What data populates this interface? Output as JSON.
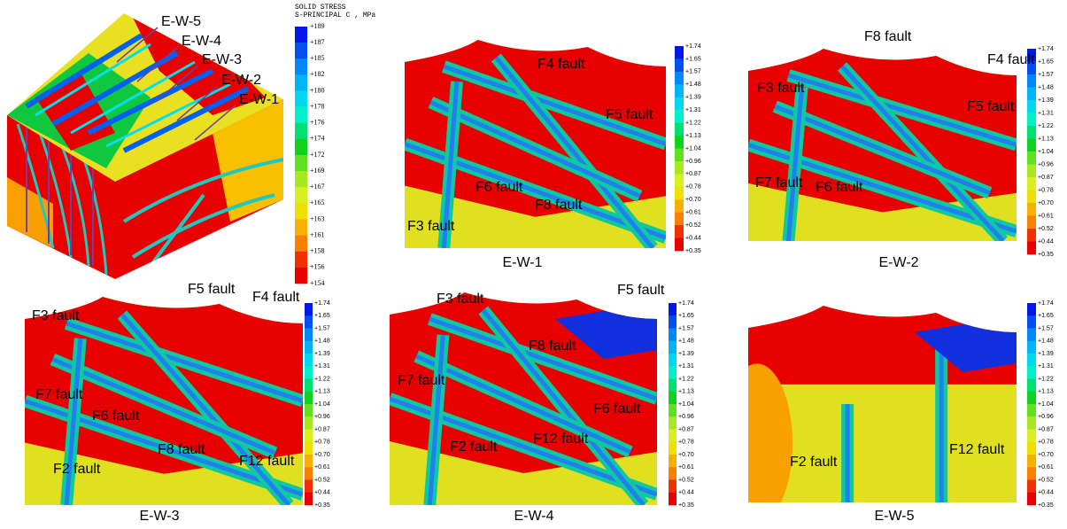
{
  "block": {
    "labels": [
      "E-W-5",
      "E-W-4",
      "E-W-3",
      "E-W-2",
      "E-W-1"
    ]
  },
  "block_colorbar": {
    "title": [
      "SOLID STRESS",
      "S-PRINCIPAL C , MPa"
    ],
    "ticks": [
      "+189",
      "+187",
      "+185",
      "+182",
      "+180",
      "+178",
      "+176",
      "+174",
      "+172",
      "+169",
      "+167",
      "+165",
      "+163",
      "+161",
      "+158",
      "+156",
      "+154"
    ],
    "colors": [
      "#0018e8",
      "#0050f0",
      "#0088f8",
      "#00b4f8",
      "#00d8f0",
      "#00f0c8",
      "#00e070",
      "#10d020",
      "#60e020",
      "#a8e820",
      "#d8f020",
      "#f0e000",
      "#f8b000",
      "#f88000",
      "#f03000",
      "#e80000"
    ]
  },
  "section_colorbar": {
    "ticks": [
      "+1.74",
      "+1.65",
      "+1.57",
      "+1.48",
      "+1.39",
      "+1.31",
      "+1.22",
      "+1.13",
      "+1.04",
      "+0.96",
      "+0.87",
      "+0.78",
      "+0.70",
      "+0.61",
      "+0.52",
      "+0.44",
      "+0.35"
    ],
    "colors": [
      "#0018e8",
      "#0050f0",
      "#0088f8",
      "#00b4f8",
      "#00d8f0",
      "#00f0c8",
      "#00e070",
      "#10d020",
      "#60e020",
      "#a8e820",
      "#d8f020",
      "#f0e000",
      "#f8b000",
      "#f88000",
      "#f03000",
      "#e80000"
    ]
  },
  "panels": [
    {
      "caption": "E-W-1",
      "faults": [
        "F4 fault",
        "F5 fault",
        "F6 fault",
        "F8 fault",
        "F3 fault"
      ]
    },
    {
      "caption": "E-W-2",
      "faults": [
        "F8 fault",
        "F4 fault",
        "F3 fault",
        "F5 fault",
        "F7 fault",
        "F6 fault"
      ]
    },
    {
      "caption": "E-W-3",
      "faults": [
        "F5 fault",
        "F4 fault",
        "F3 fault",
        "F7 fault",
        "F6 fault",
        "F8 fault",
        "F2 fault",
        "F12 fault"
      ]
    },
    {
      "caption": "E-W-4",
      "faults": [
        "F3 fault",
        "F5 fault",
        "F8 fault",
        "F7 fault",
        "F6 fault",
        "F2 fault",
        "F12 fault"
      ]
    },
    {
      "caption": "E-W-5",
      "faults": [
        "F2 fault",
        "F12 fault"
      ]
    }
  ]
}
